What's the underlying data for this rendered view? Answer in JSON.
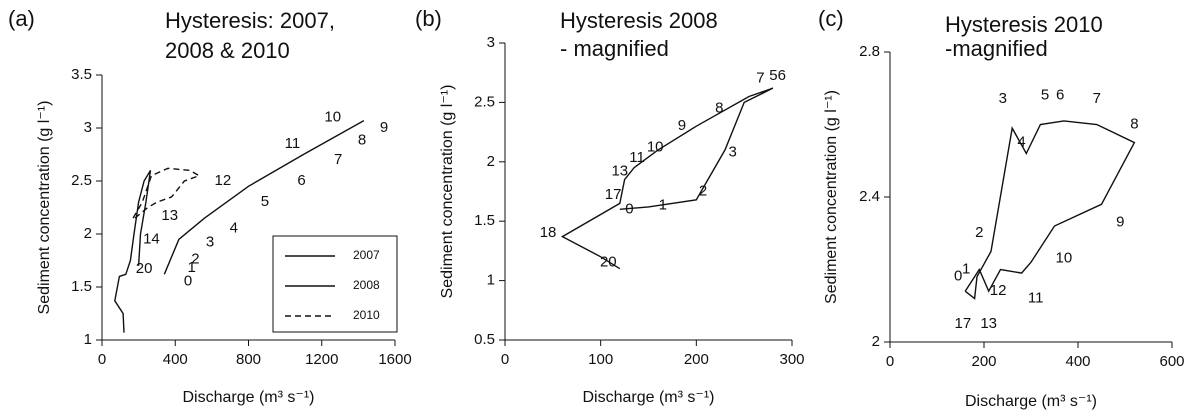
{
  "chart_data": [
    {
      "type": "line",
      "panel_label": "(a)",
      "title": [
        "Hysteresis: 2007,",
        "2008 & 2010"
      ],
      "xlabel": "Discharge (m³ s⁻¹)",
      "ylabel": "Sediment concentration (g l⁻¹)",
      "xlim": [
        0,
        1600
      ],
      "ylim": [
        1,
        3.5
      ],
      "xticks": [
        0,
        400,
        800,
        1200,
        1600
      ],
      "yticks": [
        1,
        1.5,
        2,
        2.5,
        3,
        3.5
      ],
      "legend": "lower right",
      "series": [
        {
          "name": "2007",
          "color": "#111111",
          "dash": false,
          "x": [
            340,
            420,
            560,
            800,
            1100,
            1430
          ],
          "y": [
            1.62,
            1.95,
            2.15,
            2.45,
            2.75,
            3.07
          ]
        },
        {
          "name": "2008",
          "color": "#111111",
          "dash": false,
          "x": [
            120,
            115,
            70,
            95,
            130,
            155,
            175,
            200,
            230,
            265,
            240,
            210,
            200
          ],
          "y": [
            1.07,
            1.25,
            1.37,
            1.6,
            1.62,
            1.75,
            2.0,
            2.3,
            2.5,
            2.6,
            2.3,
            2.0,
            1.7
          ]
        },
        {
          "name": "2010",
          "color": "#111111",
          "dash": true,
          "x": [
            170,
            220,
            270,
            360,
            480,
            530,
            450,
            380,
            300,
            250,
            180
          ],
          "y": [
            2.15,
            2.3,
            2.55,
            2.62,
            2.6,
            2.55,
            2.5,
            2.35,
            2.3,
            2.25,
            2.15
          ]
        }
      ],
      "point_labels": [
        {
          "text": "0",
          "x": 470,
          "y": 1.55
        },
        {
          "text": "1",
          "x": 490,
          "y": 1.68
        },
        {
          "text": "2",
          "x": 510,
          "y": 1.76
        },
        {
          "text": "3",
          "x": 590,
          "y": 1.92
        },
        {
          "text": "4",
          "x": 720,
          "y": 2.05
        },
        {
          "text": "5",
          "x": 890,
          "y": 2.3
        },
        {
          "text": "6",
          "x": 1090,
          "y": 2.5
        },
        {
          "text": "7",
          "x": 1290,
          "y": 2.7
        },
        {
          "text": "8",
          "x": 1420,
          "y": 2.88
        },
        {
          "text": "9",
          "x": 1540,
          "y": 3.0
        },
        {
          "text": "10",
          "x": 1260,
          "y": 3.1
        },
        {
          "text": "11",
          "x": 1040,
          "y": 2.85
        },
        {
          "text": "12",
          "x": 660,
          "y": 2.5
        },
        {
          "text": "13",
          "x": 370,
          "y": 2.17
        },
        {
          "text": "14",
          "x": 270,
          "y": 1.95
        },
        {
          "text": "20",
          "x": 230,
          "y": 1.67
        }
      ]
    },
    {
      "type": "line",
      "panel_label": "(b)",
      "title": [
        "Hysteresis 2008",
        "- magnified"
      ],
      "xlabel": "Discharge (m³ s⁻¹)",
      "ylabel": "Sediment concentration (g l⁻¹)",
      "xlim": [
        0,
        300
      ],
      "ylim": [
        0.5,
        3
      ],
      "xticks": [
        0,
        100,
        200,
        300
      ],
      "yticks": [
        0.5,
        1,
        1.5,
        2,
        2.5,
        3
      ],
      "series": [
        {
          "color": "#111111",
          "dash": false,
          "x": [
            120,
            150,
            200,
            230,
            250,
            280,
            255,
            200,
            160,
            135,
            125,
            120,
            60,
            100,
            120
          ],
          "y": [
            1.6,
            1.62,
            1.68,
            2.1,
            2.5,
            2.62,
            2.55,
            2.3,
            2.1,
            1.95,
            1.85,
            1.65,
            1.37,
            1.2,
            1.1
          ]
        }
      ],
      "point_labels": [
        {
          "text": "0",
          "x": 130,
          "y": 1.6
        },
        {
          "text": "1",
          "x": 165,
          "y": 1.63
        },
        {
          "text": "2",
          "x": 207,
          "y": 1.75
        },
        {
          "text": "3",
          "x": 238,
          "y": 2.08
        },
        {
          "text": "56",
          "x": 285,
          "y": 2.72
        },
        {
          "text": "7",
          "x": 267,
          "y": 2.7
        },
        {
          "text": "8",
          "x": 224,
          "y": 2.45
        },
        {
          "text": "9",
          "x": 185,
          "y": 2.3
        },
        {
          "text": "10",
          "x": 157,
          "y": 2.12
        },
        {
          "text": "11",
          "x": 138,
          "y": 2.03
        },
        {
          "text": "13",
          "x": 120,
          "y": 1.92
        },
        {
          "text": "17",
          "x": 113,
          "y": 1.72
        },
        {
          "text": "18",
          "x": 45,
          "y": 1.4
        },
        {
          "text": "20",
          "x": 108,
          "y": 1.15
        }
      ]
    },
    {
      "type": "line",
      "panel_label": "(c)",
      "title": [
        "Hysteresis 2010",
        "-magnified"
      ],
      "xlabel": "Discharge (m³ s⁻¹)",
      "ylabel": "Sediment concentration (g l⁻¹)",
      "xlim": [
        0,
        600
      ],
      "ylim": [
        2,
        2.8
      ],
      "xticks": [
        0,
        200,
        400,
        600
      ],
      "yticks": [
        2,
        2.4,
        2.8
      ],
      "series": [
        {
          "color": "#111111",
          "dash": false,
          "x": [
            160,
            190,
            210,
            235,
            280,
            300,
            350,
            450,
            520,
            440,
            370,
            320,
            290,
            260,
            215,
            185,
            180,
            160
          ],
          "y": [
            2.14,
            2.2,
            2.14,
            2.2,
            2.19,
            2.22,
            2.32,
            2.38,
            2.55,
            2.6,
            2.61,
            2.6,
            2.52,
            2.59,
            2.25,
            2.18,
            2.12,
            2.14
          ]
        }
      ],
      "point_labels": [
        {
          "text": "0",
          "x": 145,
          "y": 2.18
        },
        {
          "text": "1",
          "x": 162,
          "y": 2.2
        },
        {
          "text": "2",
          "x": 190,
          "y": 2.3
        },
        {
          "text": "3",
          "x": 240,
          "y": 2.67
        },
        {
          "text": "4",
          "x": 280,
          "y": 2.55
        },
        {
          "text": "5",
          "x": 330,
          "y": 2.68
        },
        {
          "text": "6",
          "x": 362,
          "y": 2.68
        },
        {
          "text": "7",
          "x": 440,
          "y": 2.67
        },
        {
          "text": "8",
          "x": 520,
          "y": 2.6
        },
        {
          "text": "9",
          "x": 490,
          "y": 2.33
        },
        {
          "text": "10",
          "x": 370,
          "y": 2.23
        },
        {
          "text": "11",
          "x": 310,
          "y": 2.12
        },
        {
          "text": "12",
          "x": 230,
          "y": 2.14
        },
        {
          "text": "13",
          "x": 210,
          "y": 2.05
        },
        {
          "text": "17",
          "x": 155,
          "y": 2.05
        }
      ]
    }
  ]
}
